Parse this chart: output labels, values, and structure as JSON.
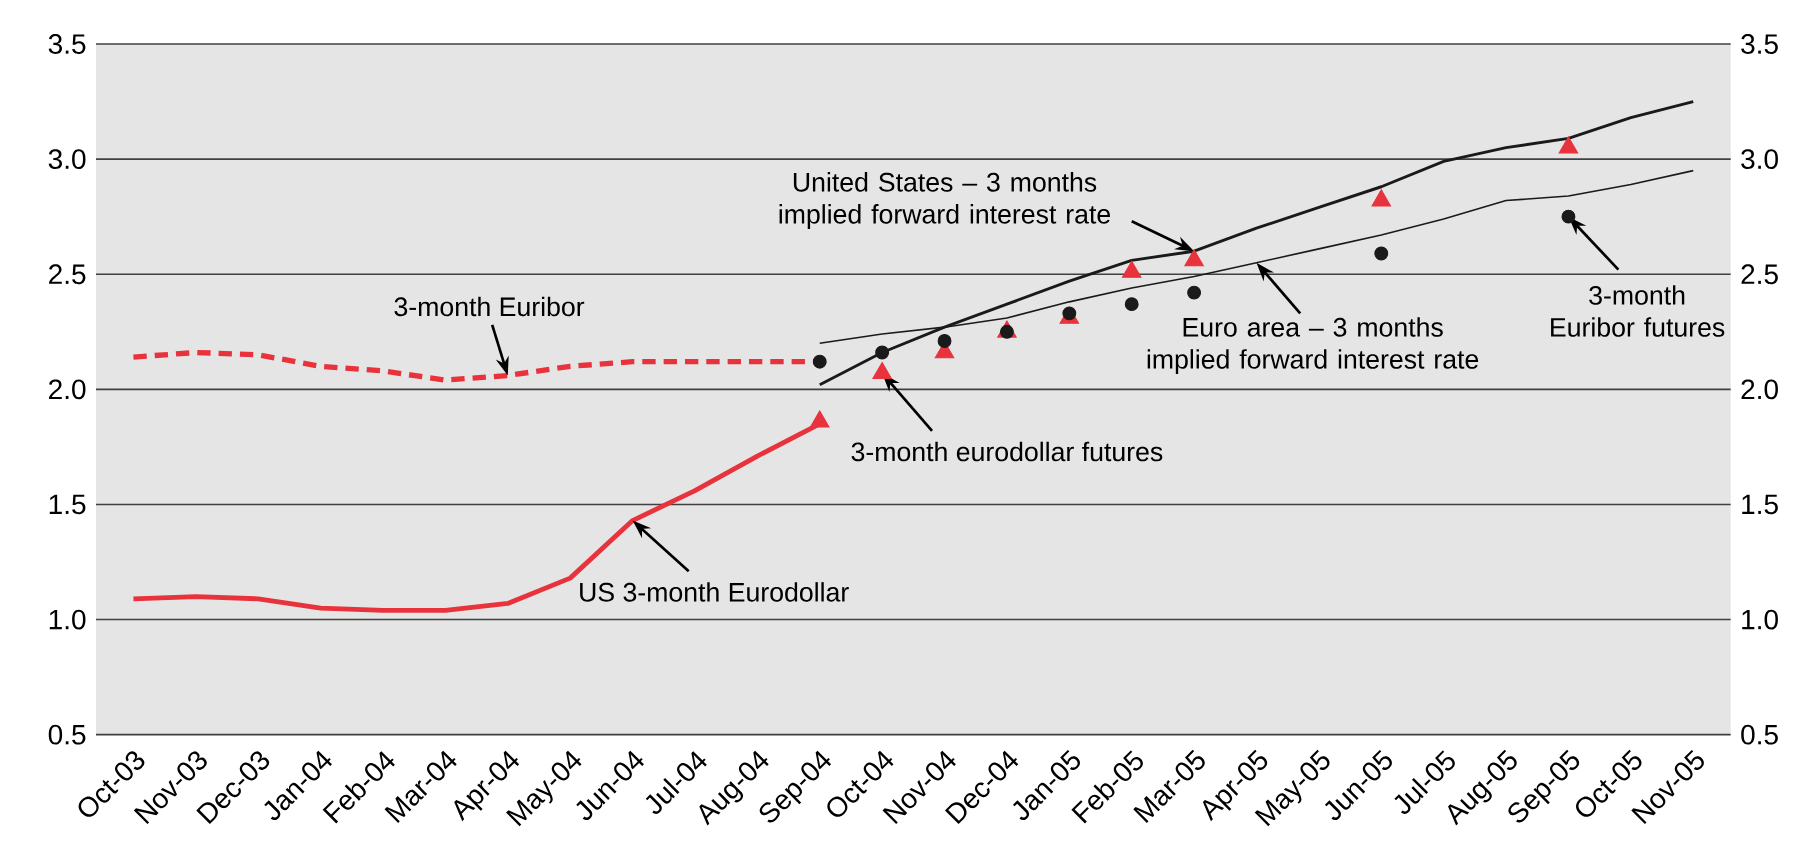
{
  "chart_data": {
    "type": "line",
    "categories": [
      "Oct-03",
      "Nov-03",
      "Dec-03",
      "Jan-04",
      "Feb-04",
      "Mar-04",
      "Apr-04",
      "May-04",
      "Jun-04",
      "Jul-04",
      "Aug-04",
      "Sep-04",
      "Oct-04",
      "Nov-04",
      "Dec-04",
      "Jan-05",
      "Feb-05",
      "Mar-05",
      "Apr-05",
      "May-05",
      "Jun-05",
      "Jul-05",
      "Aug-05",
      "Sep-05",
      "Oct-05",
      "Nov-05"
    ],
    "series": [
      {
        "line_style": "dashed",
        "color": "#e8323c",
        "values": [
          2.14,
          2.16,
          2.15,
          2.1,
          2.08,
          2.04,
          2.06,
          2.1,
          2.12,
          2.12,
          2.12,
          2.12,
          null,
          null,
          null,
          null,
          null,
          null,
          null,
          null,
          null,
          null,
          null,
          null,
          null,
          null
        ]
      },
      {
        "line_style": "solid",
        "color": "#e8323c",
        "values": [
          1.09,
          1.1,
          1.09,
          1.05,
          1.04,
          1.04,
          1.07,
          1.18,
          1.43,
          1.56,
          1.71,
          1.85,
          null,
          null,
          null,
          null,
          null,
          null,
          null,
          null,
          null,
          null,
          null,
          null,
          null,
          null
        ]
      },
      {
        "type": "scatter",
        "marker": "triangle",
        "color": "#e8323c",
        "values": [
          null,
          null,
          null,
          null,
          null,
          null,
          null,
          null,
          null,
          null,
          null,
          1.86,
          2.07,
          2.16,
          2.25,
          2.31,
          2.51,
          2.56,
          null,
          null,
          2.82,
          null,
          null,
          3.05,
          null,
          null
        ]
      },
      {
        "type": "scatter",
        "marker": "circle",
        "color": "#1a1a1a",
        "values": [
          null,
          null,
          null,
          null,
          null,
          null,
          null,
          null,
          null,
          null,
          null,
          2.12,
          2.16,
          2.21,
          2.25,
          2.33,
          2.37,
          2.42,
          null,
          null,
          2.59,
          null,
          null,
          2.75,
          null,
          null
        ]
      },
      {
        "line_style": "solid",
        "color": "#1a1a1a",
        "values": [
          null,
          null,
          null,
          null,
          null,
          null,
          null,
          null,
          null,
          null,
          null,
          2.02,
          2.16,
          2.27,
          2.37,
          2.47,
          2.56,
          2.6,
          2.7,
          2.79,
          2.88,
          2.99,
          3.05,
          3.09,
          3.18,
          3.25
        ]
      },
      {
        "line_style": "solid",
        "color": "#1a1a1a",
        "values": [
          null,
          null,
          null,
          null,
          null,
          null,
          null,
          null,
          null,
          null,
          null,
          2.2,
          2.24,
          2.27,
          2.31,
          2.38,
          2.44,
          2.49,
          2.55,
          2.61,
          2.67,
          2.74,
          2.82,
          2.84,
          2.89,
          2.95
        ]
      }
    ],
    "ylim": [
      0.5,
      3.5
    ],
    "yticks": [
      0.5,
      {
        "value": 1.0,
        "label": "1.0"
      },
      1.5,
      {
        "value": 2.0,
        "label": "2.0"
      },
      2.5,
      {
        "value": 3.0,
        "label": "3.0"
      },
      3.5
    ],
    "y2lim": [
      0.5,
      3.5
    ],
    "y2ticks": [
      0.5,
      {
        "value": 1.0,
        "label": "1.0"
      },
      1.5,
      {
        "value": 2.0,
        "label": "2.0"
      },
      2.5,
      {
        "value": 3.0,
        "label": "3.0"
      },
      3.5
    ],
    "grid": "y",
    "annotations": [
      {
        "text": "3-month Euribor",
        "x": "Apr-04",
        "y": 2.06
      },
      {
        "text": "US 3-month Eurodollar",
        "x": "Jun-04",
        "y": 1.43
      },
      {
        "text": "3-month eurodollar futures",
        "x": "Oct-04",
        "y": 2.07
      },
      {
        "text": "United States – 3 months implied forward interest rate",
        "x": "Mar-05",
        "y": 2.6
      },
      {
        "text": "Euro area – 3 months implied forward interest rate",
        "x": "Apr-05",
        "y": 2.55
      },
      {
        "text": "3-month Euribor futures",
        "x": "Sep-05",
        "y": 2.75
      }
    ]
  }
}
